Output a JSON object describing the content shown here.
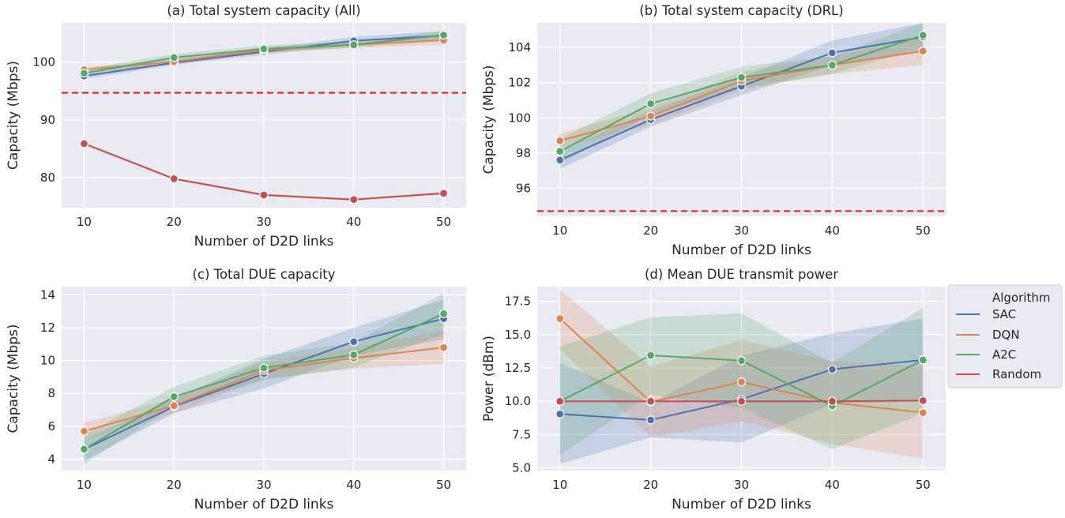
{
  "legend": {
    "title": "Algorithm",
    "entries": [
      {
        "name": "SAC",
        "color": "#4c72b0"
      },
      {
        "name": "DQN",
        "color": "#dd8452"
      },
      {
        "name": "A2C",
        "color": "#55a868"
      },
      {
        "name": "Random",
        "color": "#c44e52"
      }
    ],
    "placement": "right of panel (d)"
  },
  "chart_data": [
    {
      "type": "line",
      "title": "(a) Total system capacity (All)",
      "xlabel": "Number of D2D links",
      "ylabel": "Capacity (Mbps)",
      "x": [
        10,
        20,
        30,
        40,
        50
      ],
      "xlim": [
        7.5,
        52.5
      ],
      "ylim": [
        74.8,
        106.8
      ],
      "yticks": [
        80,
        90,
        100
      ],
      "grid": true,
      "reference_line": {
        "y": 94.7,
        "color": "#e8282a",
        "style": "dashed"
      },
      "series": [
        {
          "name": "SAC",
          "values": [
            97.6,
            99.9,
            101.8,
            103.7,
            104.6
          ],
          "lower": [
            97.1,
            99.5,
            101.3,
            103.0,
            103.8
          ],
          "upper": [
            98.1,
            100.4,
            102.3,
            104.4,
            105.4
          ]
        },
        {
          "name": "DQN",
          "values": [
            98.7,
            100.1,
            102.1,
            103.0,
            103.8
          ],
          "lower": [
            98.3,
            99.6,
            101.6,
            102.5,
            103.0
          ],
          "upper": [
            99.1,
            100.6,
            102.6,
            103.5,
            104.6
          ]
        },
        {
          "name": "A2C",
          "values": [
            98.1,
            100.8,
            102.3,
            103.0,
            104.7
          ],
          "lower": [
            97.4,
            100.2,
            101.7,
            102.5,
            104.0
          ],
          "upper": [
            98.8,
            101.4,
            102.9,
            103.5,
            105.4
          ]
        },
        {
          "name": "Random",
          "values": [
            85.9,
            79.8,
            77.0,
            76.2,
            77.3
          ],
          "lower": [
            85.7,
            79.6,
            76.8,
            76.0,
            77.1
          ],
          "upper": [
            86.1,
            80.0,
            77.2,
            76.4,
            77.5
          ]
        }
      ]
    },
    {
      "type": "line",
      "title": "(b) Total system capacity (DRL)",
      "xlabel": "Number of D2D links",
      "ylabel": "Capacity (Mbps)",
      "x": [
        10,
        20,
        30,
        40,
        50
      ],
      "xlim": [
        7.5,
        52.5
      ],
      "ylim": [
        94.4,
        105.4
      ],
      "yticks": [
        96,
        98,
        100,
        102,
        104
      ],
      "grid": true,
      "reference_line": {
        "y": 94.7,
        "color": "#e8282a",
        "style": "dashed"
      },
      "series": [
        {
          "name": "SAC",
          "values": [
            97.6,
            99.9,
            101.8,
            103.7,
            104.6
          ],
          "lower": [
            97.1,
            99.5,
            101.3,
            103.0,
            103.8
          ],
          "upper": [
            98.1,
            100.4,
            102.3,
            104.4,
            105.4
          ]
        },
        {
          "name": "DQN",
          "values": [
            98.7,
            100.1,
            102.1,
            103.0,
            103.8
          ],
          "lower": [
            98.3,
            99.6,
            101.6,
            102.5,
            103.0
          ],
          "upper": [
            99.1,
            100.6,
            102.6,
            103.5,
            104.6
          ]
        },
        {
          "name": "A2C",
          "values": [
            98.1,
            100.8,
            102.3,
            103.0,
            104.7
          ],
          "lower": [
            97.4,
            100.2,
            101.7,
            102.5,
            104.0
          ],
          "upper": [
            98.8,
            101.4,
            102.9,
            103.5,
            105.4
          ]
        }
      ]
    },
    {
      "type": "line",
      "title": "(c) Total DUE capacity",
      "xlabel": "Number of D2D links",
      "ylabel": "Capacity (Mbps)",
      "x": [
        10,
        20,
        30,
        40,
        50
      ],
      "xlim": [
        7.5,
        52.5
      ],
      "ylim": [
        3.3,
        14.5
      ],
      "yticks": [
        4,
        6,
        8,
        10,
        12,
        14
      ],
      "grid": true,
      "series": [
        {
          "name": "SAC",
          "values": [
            4.6,
            7.2,
            9.2,
            11.15,
            12.55
          ],
          "lower": [
            3.9,
            6.8,
            8.3,
            10.3,
            11.3
          ],
          "upper": [
            5.2,
            7.7,
            10.1,
            12.0,
            13.7
          ]
        },
        {
          "name": "DQN",
          "values": [
            5.7,
            7.25,
            9.4,
            10.15,
            10.8
          ],
          "lower": [
            5.2,
            6.8,
            8.9,
            9.5,
            9.8
          ],
          "upper": [
            6.2,
            7.7,
            9.9,
            10.8,
            11.8
          ]
        },
        {
          "name": "A2C",
          "values": [
            4.6,
            7.8,
            9.55,
            10.35,
            12.85
          ],
          "lower": [
            3.7,
            7.2,
            8.8,
            9.6,
            11.6
          ],
          "upper": [
            5.5,
            8.4,
            10.3,
            11.1,
            14.1
          ]
        }
      ]
    },
    {
      "type": "line",
      "title": "(d) Mean DUE transmit power",
      "xlabel": "Number of D2D links",
      "ylabel": "Power (dBm)",
      "x": [
        10,
        20,
        30,
        40,
        50
      ],
      "xlim": [
        7.5,
        52.5
      ],
      "ylim": [
        4.8,
        18.6
      ],
      "yticks": [
        5.0,
        7.5,
        10.0,
        12.5,
        15.0,
        17.5
      ],
      "grid": true,
      "series": [
        {
          "name": "SAC",
          "values": [
            9.05,
            8.6,
            10.15,
            12.4,
            13.1
          ],
          "lower": [
            5.3,
            7.3,
            6.9,
            9.8,
            10.0
          ],
          "upper": [
            12.9,
            9.9,
            13.4,
            15.1,
            16.2
          ]
        },
        {
          "name": "DQN",
          "values": [
            16.2,
            9.95,
            11.45,
            9.9,
            9.15
          ],
          "lower": [
            13.9,
            7.3,
            8.5,
            6.8,
            5.7
          ],
          "upper": [
            18.4,
            12.6,
            14.6,
            13.0,
            12.6
          ]
        },
        {
          "name": "A2C",
          "values": [
            10.0,
            13.45,
            13.05,
            9.65,
            13.1
          ],
          "lower": [
            6.0,
            10.5,
            9.5,
            6.4,
            9.1
          ],
          "upper": [
            14.1,
            16.3,
            16.6,
            12.9,
            17.0
          ]
        },
        {
          "name": "Random",
          "values": [
            10.0,
            10.0,
            10.0,
            10.0,
            10.05
          ],
          "lower": [
            9.95,
            9.95,
            9.95,
            9.95,
            10.0
          ],
          "upper": [
            10.05,
            10.05,
            10.05,
            10.05,
            10.1
          ]
        }
      ]
    }
  ]
}
